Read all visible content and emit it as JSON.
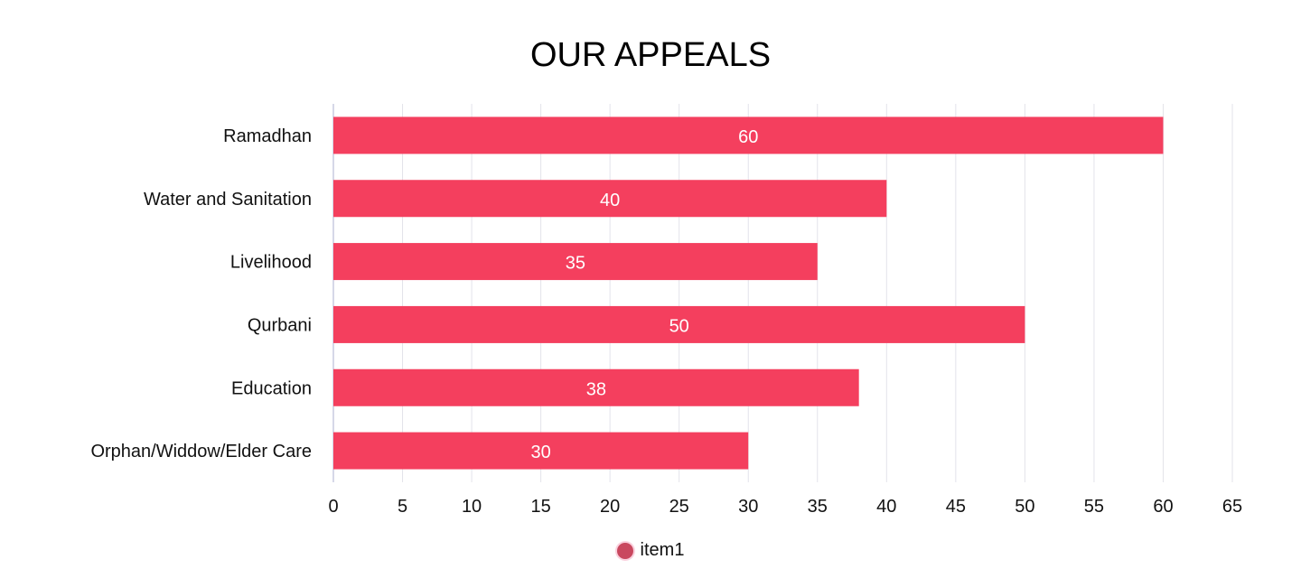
{
  "chart_data": {
    "type": "bar",
    "orientation": "horizontal",
    "title": "OUR APPEALS",
    "categories": [
      "Ramadhan",
      "Water and Sanitation",
      "Livelihood",
      "Qurbani",
      "Education",
      "Orphan/Widdow/Elder Care"
    ],
    "series": [
      {
        "name": "item1",
        "values": [
          60,
          40,
          35,
          50,
          38,
          30
        ]
      }
    ],
    "xlim": [
      0,
      65
    ],
    "xticks": [
      0,
      5,
      10,
      15,
      20,
      25,
      30,
      35,
      40,
      45,
      50,
      55,
      60,
      65
    ],
    "xlabel": "",
    "ylabel": "",
    "grid": true,
    "legend_position": "bottom",
    "colors": {
      "bar": "#f43f5e",
      "grid": "#e3e3ea",
      "axis": "#c8cce0",
      "legend_swatch": "#c9485f",
      "label": "#ffffff"
    }
  }
}
